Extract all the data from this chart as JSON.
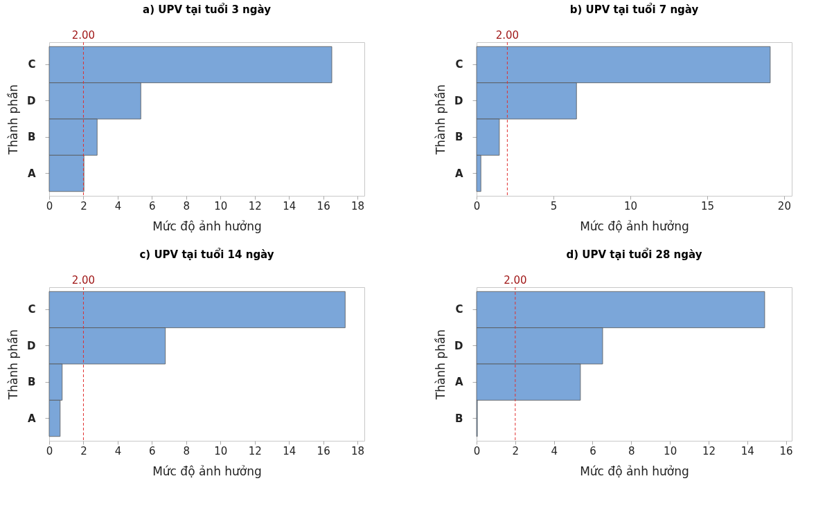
{
  "chart_data": [
    {
      "type": "bar",
      "orientation": "horizontal",
      "title": "a) UPV tại tuổi 3 ngày",
      "xlabel": "Mức độ ảnh hưởng",
      "ylabel": "Thành phần",
      "categories": [
        "C",
        "D",
        "B",
        "A"
      ],
      "values": [
        16.5,
        5.35,
        2.8,
        2.03
      ],
      "color": "#7ba6d9",
      "xlim": [
        0,
        18.4
      ],
      "xticks": [
        0,
        2,
        4,
        6,
        8,
        10,
        12,
        14,
        16,
        18
      ],
      "ref_lines": [
        {
          "axis": "x",
          "value": 2,
          "label": "2.00",
          "color": "#e03030",
          "line_style": "dashed"
        }
      ]
    },
    {
      "type": "bar",
      "orientation": "horizontal",
      "title": "b) UPV tại tuổi 7 ngày",
      "xlabel": "Mức độ ảnh hưởng",
      "ylabel": "Thành phần",
      "categories": [
        "C",
        "D",
        "B",
        "A"
      ],
      "values": [
        19.1,
        6.5,
        1.48,
        0.28
      ],
      "color": "#7ba6d9",
      "xlim": [
        0,
        20.5
      ],
      "xticks": [
        0,
        5,
        10,
        15,
        20
      ],
      "ref_lines": [
        {
          "axis": "x",
          "value": 2,
          "label": "2.00",
          "color": "#e03030",
          "line_style": "dashed"
        }
      ]
    },
    {
      "type": "bar",
      "orientation": "horizontal",
      "title": "c) UPV tại tuổi 14 ngày",
      "xlabel": "Mức độ ảnh hưởng",
      "ylabel": "Thành phần",
      "categories": [
        "C",
        "D",
        "B",
        "A"
      ],
      "values": [
        17.28,
        6.78,
        0.76,
        0.64
      ],
      "color": "#7ba6d9",
      "xlim": [
        0,
        18.4
      ],
      "xticks": [
        0,
        2,
        4,
        6,
        8,
        10,
        12,
        14,
        16,
        18
      ],
      "ref_lines": [
        {
          "axis": "x",
          "value": 2,
          "label": "2.00",
          "color": "#e03030",
          "line_style": "dashed"
        }
      ]
    },
    {
      "type": "bar",
      "orientation": "horizontal",
      "title": "d) UPV tại tuổi 28 ngày",
      "xlabel": "Mức độ ảnh hưởng",
      "ylabel": "Thành phần",
      "categories": [
        "C",
        "D",
        "A",
        "B"
      ],
      "values": [
        14.9,
        6.52,
        5.37,
        0.04
      ],
      "color": "#7ba6d9",
      "xlim": [
        0,
        16.3
      ],
      "xticks": [
        0,
        2,
        4,
        6,
        8,
        10,
        12,
        14,
        16
      ],
      "ref_lines": [
        {
          "axis": "x",
          "value": 2,
          "label": "2.00",
          "color": "#e03030",
          "line_style": "dashed"
        }
      ]
    }
  ]
}
